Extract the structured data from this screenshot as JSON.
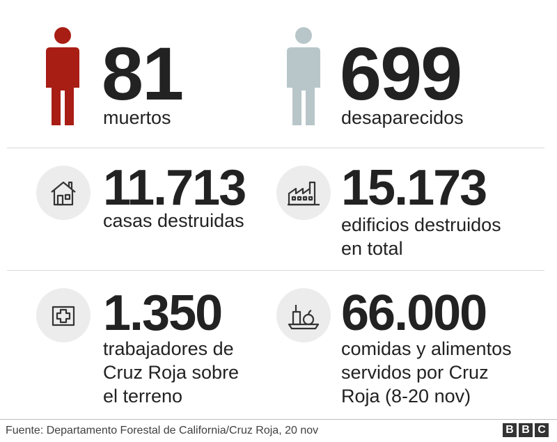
{
  "stats": {
    "dead": {
      "value": "81",
      "label": "muertos",
      "icon": "person-red-icon",
      "color": "#a81d14"
    },
    "missing": {
      "value": "699",
      "label": "desaparecidos",
      "icon": "person-grey-icon",
      "color": "#b8c6c9"
    },
    "houses": {
      "value": "11.713",
      "label": "casas destruidas",
      "icon": "house-icon"
    },
    "buildings": {
      "value": "15.173",
      "label": "edificios destruidos\nen total",
      "icon": "factory-icon"
    },
    "workers": {
      "value": "1.350",
      "label": "trabajadores de\nCruz Roja sobre\nel terreno",
      "icon": "first-aid-icon"
    },
    "meals": {
      "value": "66.000",
      "label": "comidas y alimentos\nservidos por Cruz\nRoja (8-20 nov)",
      "icon": "food-tray-icon"
    }
  },
  "footer": {
    "source": "Fuente: Departamento Forestal de California/Cruz Roja, 20 nov",
    "logo_letters": [
      "B",
      "B",
      "C"
    ]
  }
}
